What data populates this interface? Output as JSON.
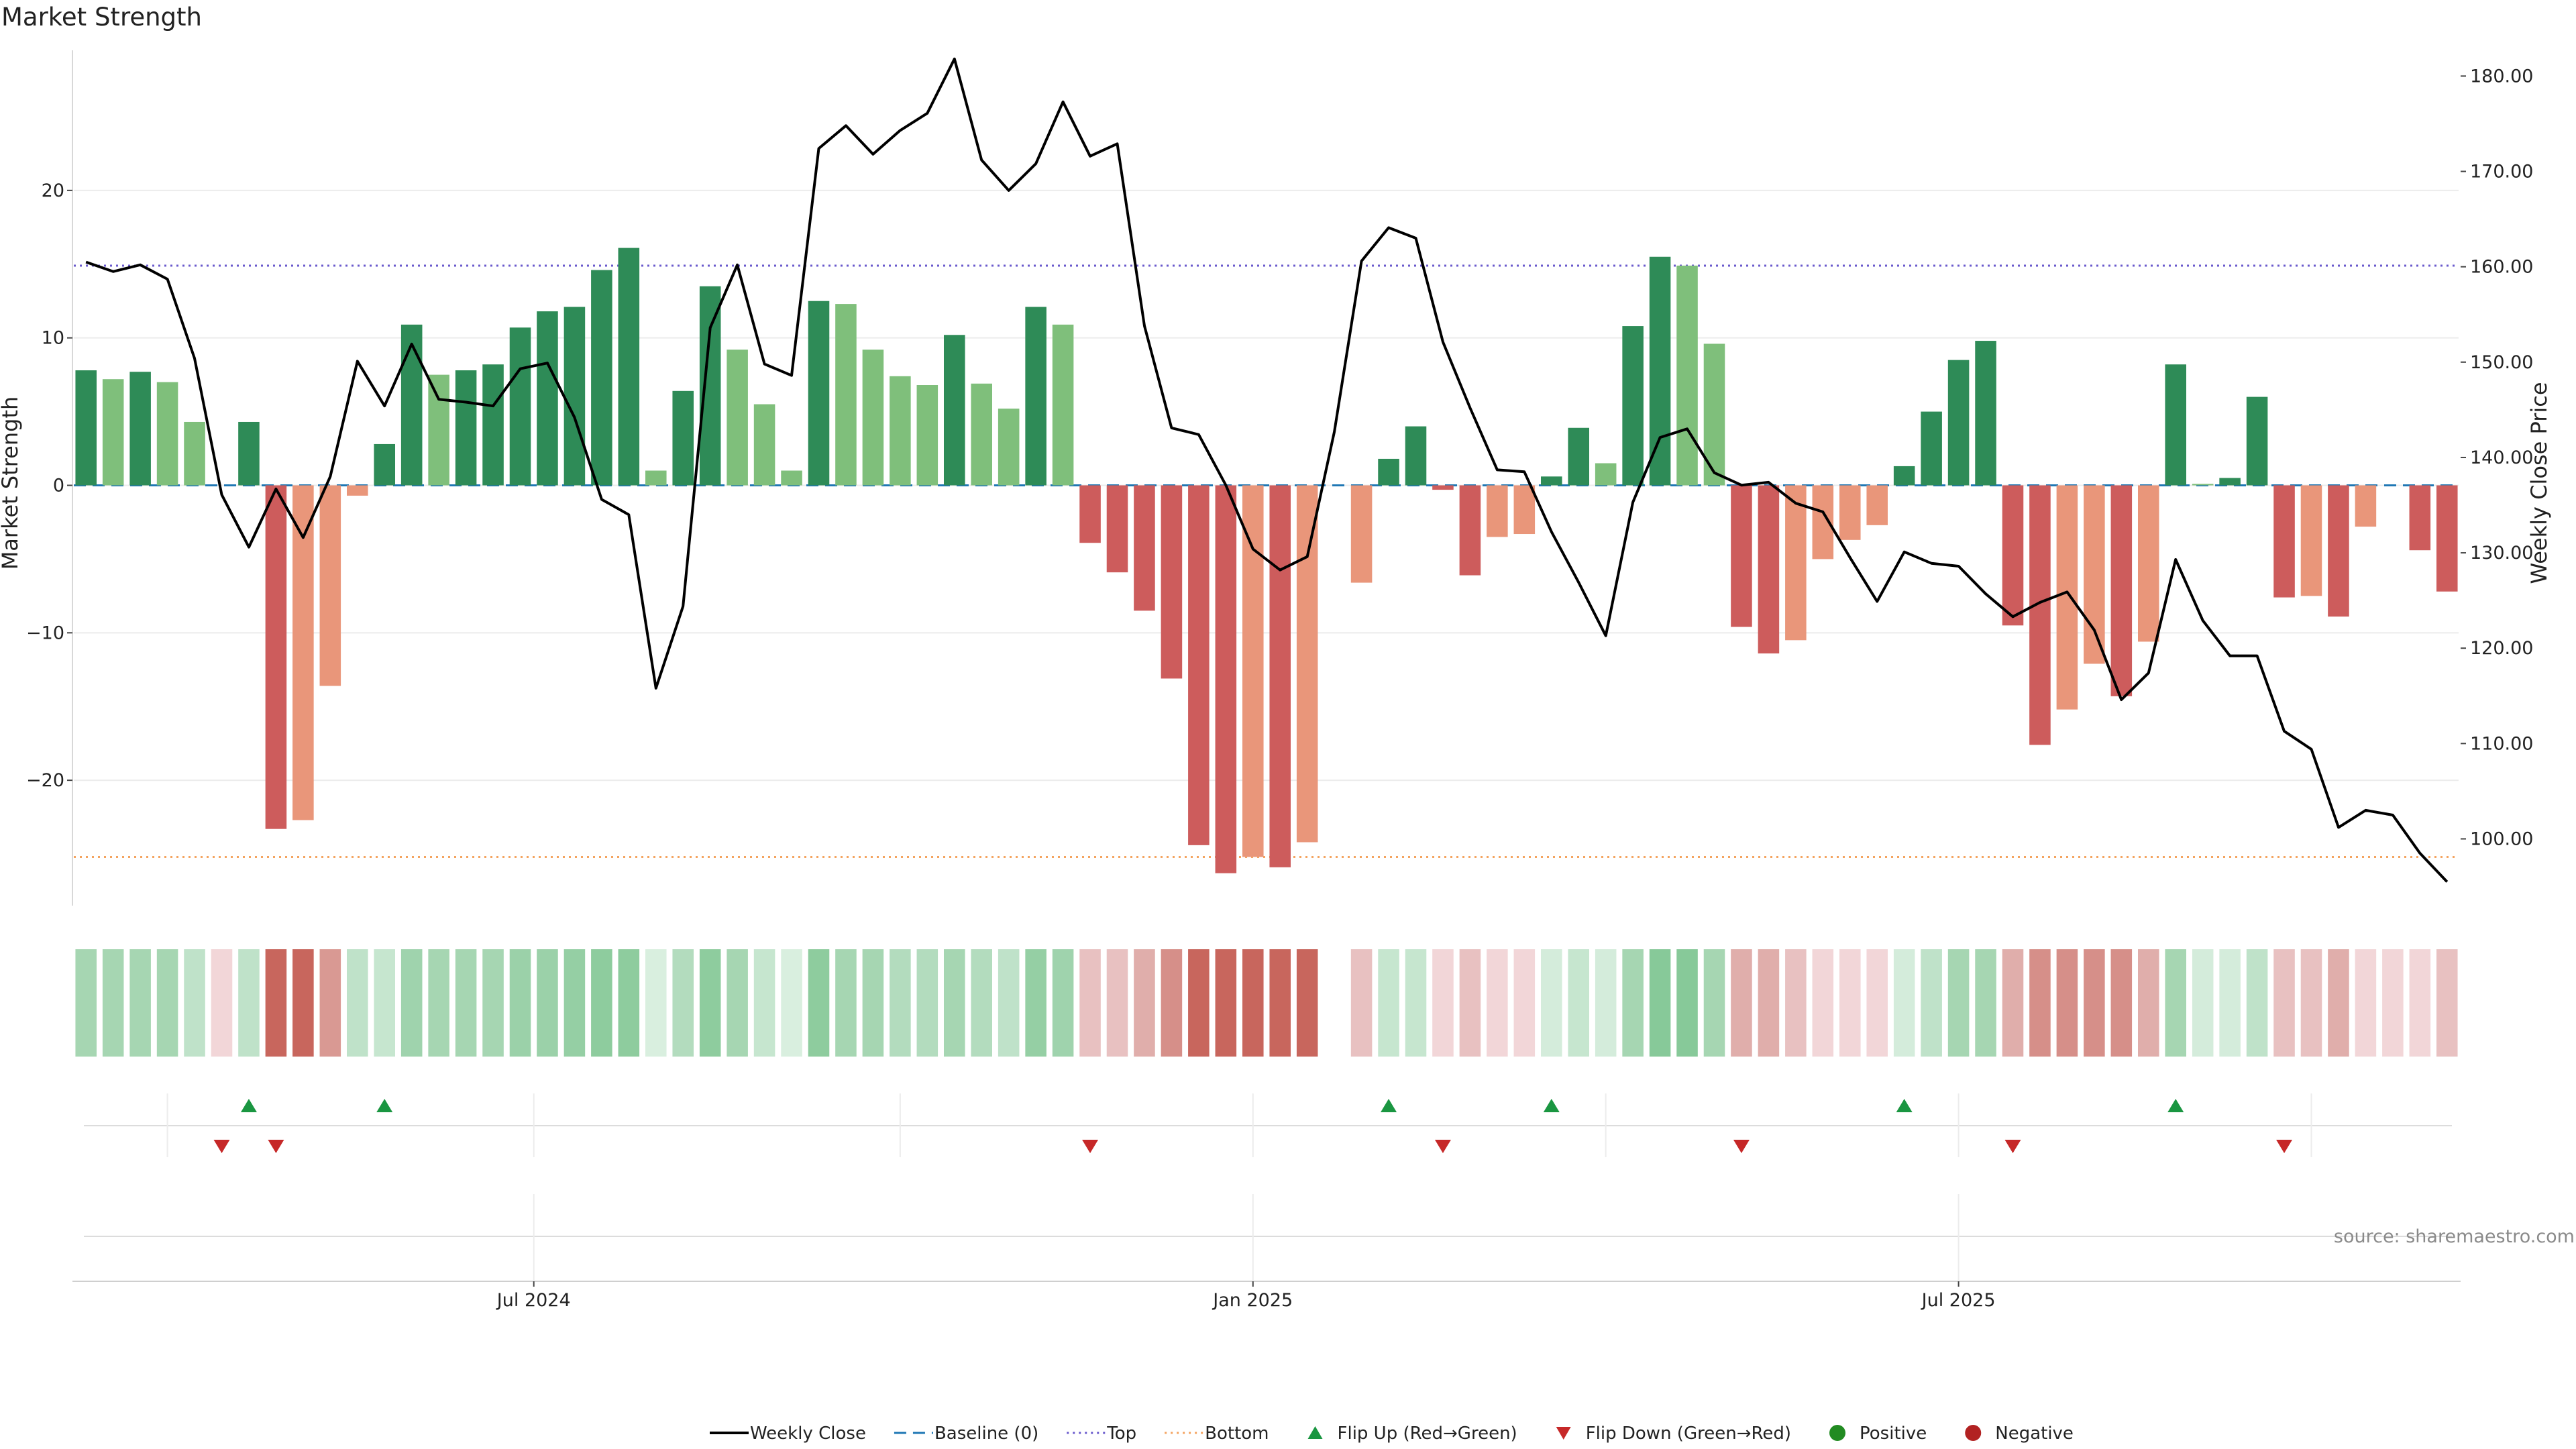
{
  "title": "Market Strength",
  "source_note": "source: sharemaestro.com",
  "colors": {
    "strong_green": "#2e8b57",
    "light_green": "#7fbf7b",
    "strong_red": "#cd5c5c",
    "light_red": "#e9967a",
    "price_line": "#000000",
    "baseline": "#1f77b4",
    "top_line": "#6a5acd",
    "bottom_line": "#f4a460",
    "flip_up": "#1a9641",
    "flip_down": "#c62828",
    "positive": "#228b22",
    "negative": "#b22222"
  },
  "chart_data": {
    "type": "bar",
    "y_left_label": "Market Strength",
    "y_right_label": "Weekly Close Price",
    "y_left_range": [
      -28.5,
      29.5
    ],
    "y_left_ticks": [
      "20",
      "10",
      "0",
      "−10",
      "−20"
    ],
    "y_left_tick_values": [
      20,
      10,
      0,
      -10,
      -20
    ],
    "y_right_range": [
      93.0,
      182.7
    ],
    "y_right_ticks": [
      "180.00",
      "170.00",
      "160.00",
      "150.00",
      "140.00",
      "130.00",
      "120.00",
      "110.00",
      "100.00"
    ],
    "y_right_tick_values": [
      180,
      170,
      160,
      150,
      140,
      130,
      120,
      110,
      100
    ],
    "top_level": 14.9,
    "bottom_level": -25.2,
    "baseline_level": 0,
    "x_labels": [
      {
        "label": "Jul 2024",
        "week": 16.5
      },
      {
        "label": "Jan 2025",
        "week": 43
      },
      {
        "label": "Jul 2025",
        "week": 69
      }
    ],
    "strength": [
      7.8,
      7.2,
      7.7,
      7.0,
      4.3,
      0,
      4.3,
      -23.3,
      -22.7,
      -13.6,
      -0.7,
      2.8,
      10.9,
      7.5,
      7.8,
      8.2,
      10.7,
      11.8,
      12.1,
      14.6,
      16.1,
      1.0,
      6.4,
      13.5,
      9.2,
      5.5,
      1.0,
      12.5,
      12.3,
      9.2,
      7.4,
      6.8,
      10.2,
      6.9,
      5.2,
      12.1,
      10.9,
      -3.9,
      -5.9,
      -8.5,
      -13.1,
      -24.4,
      -26.3,
      -25.2,
      -25.9,
      -24.2,
      0,
      -6.6,
      1.8,
      4.0,
      -0.3,
      -6.1,
      -3.5,
      -3.3,
      0.6,
      3.9,
      1.5,
      10.8,
      15.5,
      14.9,
      9.6,
      -9.6,
      -11.4,
      -10.5,
      -5.0,
      -3.7,
      -2.7,
      1.3,
      5.0,
      8.5,
      9.8,
      -9.5,
      -17.6,
      -15.2,
      -12.1,
      -14.3,
      -10.6,
      8.2,
      0.1,
      0.5,
      6.0,
      -7.6,
      -7.5,
      -8.9,
      -2.8,
      0,
      -4.4,
      -7.2
    ],
    "strength_shade": [
      "dark",
      "light",
      "dark",
      "light",
      "light",
      "dark",
      "dark",
      "dark",
      "light",
      "light",
      "light",
      "dark",
      "dark",
      "light",
      "dark",
      "dark",
      "dark",
      "dark",
      "dark",
      "dark",
      "dark",
      "light",
      "dark",
      "dark",
      "light",
      "light",
      "light",
      "dark",
      "light",
      "light",
      "light",
      "light",
      "dark",
      "light",
      "light",
      "dark",
      "light",
      "dark",
      "dark",
      "dark",
      "dark",
      "dark",
      "dark",
      "light",
      "dark",
      "light",
      "dark",
      "light",
      "dark",
      "dark",
      "dark",
      "dark",
      "light",
      "light",
      "dark",
      "dark",
      "light",
      "dark",
      "dark",
      "light",
      "light",
      "dark",
      "dark",
      "light",
      "light",
      "light",
      "light",
      "dark",
      "dark",
      "dark",
      "dark",
      "dark",
      "dark",
      "light",
      "light",
      "dark",
      "light",
      "dark",
      "light",
      "dark",
      "dark",
      "dark",
      "light",
      "dark",
      "light",
      "light",
      "dark",
      "dark"
    ],
    "weekly_close": [
      160.5,
      159.5,
      160.2,
      158.7,
      150.4,
      136.1,
      130.6,
      136.7,
      131.6,
      138.0,
      150.1,
      145.4,
      151.9,
      146.1,
      145.8,
      145.4,
      149.3,
      149.9,
      144.2,
      135.6,
      134.0,
      115.8,
      124.4,
      153.6,
      160.2,
      149.8,
      148.6,
      172.4,
      174.8,
      171.8,
      174.3,
      176.1,
      181.8,
      171.2,
      168.0,
      170.8,
      177.3,
      171.6,
      172.9,
      153.8,
      143.1,
      142.4,
      137.1,
      130.4,
      128.2,
      129.6,
      142.7,
      160.6,
      164.1,
      163.0,
      152.1,
      145.2,
      138.7,
      138.5,
      132.2,
      126.9,
      121.3,
      135.3,
      142.1,
      143.0,
      138.4,
      137.1,
      137.4,
      135.2,
      134.3,
      129.5,
      124.9,
      130.1,
      128.9,
      128.6,
      125.7,
      123.3,
      124.8,
      125.9,
      121.9,
      114.6,
      117.4,
      129.3,
      122.9,
      119.2,
      119.2,
      111.3,
      109.4,
      101.2,
      103.0,
      102.5,
      98.5,
      95.5
    ],
    "heat_strip": [
      [
        "#a6d6b2",
        "#a6d6b2",
        "#a6d6b2",
        "#a6d6b2",
        "#bfe2c9",
        "#f2d6d8",
        "#bfe2c9",
        "#c8665d",
        "#c8665d",
        "#d99993",
        "#bfe2c9",
        "#c6e6cf",
        "#9fd3ad",
        "#a6d6b2",
        "#a6d6b2",
        "#a6d6b2",
        "#9bd1a9",
        "#9bd1a9",
        "#95cfa4",
        "#8ecc9e",
        "#8ecc9e",
        "#d9efdf",
        "#b3dcbe",
        "#8ecc9e",
        "#a6d6b2",
        "#c6e6cf",
        "#d9efdf",
        "#8ecc9e",
        "#a6d6b2",
        "#a6d6b2",
        "#b3dcbe",
        "#b3dcbe",
        "#a6d6b2",
        "#b3dcbe",
        "#bfe2c9",
        "#95cfa4",
        "#9fd3ad",
        "#e8c1c1",
        "#e8c1c1",
        "#e0aeab",
        "#d68f89",
        "#c8665d",
        "#c8665d",
        "#c8665d",
        "#c8665d",
        "#c8665d",
        "#ffffff",
        "#e8c1c1",
        "#c6e6cf",
        "#c6e6cf",
        "#f2d6d8",
        "#e8c1c1",
        "#f2d6d8",
        "#f2d6d8",
        "#d4ecdb",
        "#c6e6cf",
        "#d4ecdb",
        "#a6d6b2",
        "#87c999",
        "#87c999",
        "#a6d6b2",
        "#e0aeab",
        "#e0aeab",
        "#e8c1c1",
        "#f2d6d8",
        "#f2d6d8",
        "#f2d6d8",
        "#d4ecdb",
        "#bfe2c9",
        "#a6d6b2",
        "#a6d6b2",
        "#e0aeab",
        "#d68f89",
        "#d68f89",
        "#d68f89",
        "#d68f89",
        "#e0aeab",
        "#a6d6b2",
        "#d4ecdb",
        "#d4ecdb",
        "#bfe2c9",
        "#e8c1c1",
        "#e8c1c1",
        "#e0aeab",
        "#f2d6d8",
        "#f2d6d8",
        "#f2d6d8",
        "#e8c1c1"
      ]
    ],
    "flip_up_weeks": [
      6,
      11,
      48,
      54,
      67,
      77
    ],
    "flip_down_weeks": [
      5,
      7,
      37,
      50,
      61,
      71,
      81
    ],
    "legend": [
      {
        "label": "Weekly Close",
        "kind": "solid-line"
      },
      {
        "label": "Baseline (0)",
        "kind": "dashed-line"
      },
      {
        "label": "Top",
        "kind": "dotted-line"
      },
      {
        "label": "Bottom",
        "kind": "dotted-line"
      },
      {
        "label": "Flip Up (Red→Green)",
        "kind": "triangle-up"
      },
      {
        "label": "Flip Down (Green→Red)",
        "kind": "triangle-down"
      },
      {
        "label": "Positive",
        "kind": "dot"
      },
      {
        "label": "Negative",
        "kind": "dot"
      }
    ],
    "legend_position": "bottom-center",
    "grid": true
  }
}
